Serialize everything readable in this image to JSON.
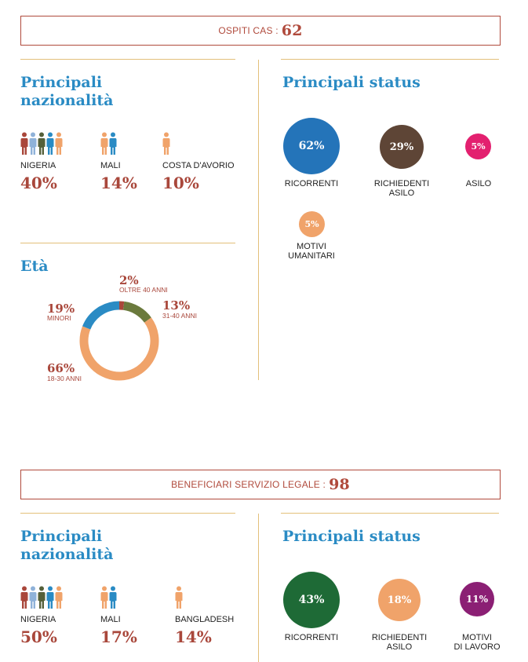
{
  "section1": {
    "banner_label": "OSPITI CAS :",
    "banner_value": "62",
    "nationalities_title": "Principali\nnazionalità",
    "nationalities": [
      {
        "country": "NIGERIA",
        "pct": "40%"
      },
      {
        "country": "MALI",
        "pct": "14%"
      },
      {
        "country": "COSTA D'AVORIO",
        "pct": "10%"
      }
    ],
    "status_title": "Principali status",
    "status": [
      {
        "value": "62%",
        "label": "RICORRENTI",
        "color": "#2474b9"
      },
      {
        "value": "29%",
        "label": "RICHIEDENTI\nASILO",
        "color": "#5e4536"
      },
      {
        "value": "5%",
        "label": "ASILO",
        "color": "#e3206f"
      },
      {
        "value": "5%",
        "label": "MOTIVI\nUMANITARI",
        "color": "#f0a36a"
      }
    ],
    "age_title": "Età",
    "age": [
      {
        "pct": "2%",
        "label": "OLTRE 40 ANNI"
      },
      {
        "pct": "13%",
        "label": "31-40 ANNI"
      },
      {
        "pct": "66%",
        "label": "18-30 ANNI"
      },
      {
        "pct": "19%",
        "label": "MINORI"
      }
    ]
  },
  "section2": {
    "banner_label": "BENEFICIARI SERVIZIO LEGALE :",
    "banner_value": "98",
    "nationalities_title": "Principali\nnazionalità",
    "nationalities": [
      {
        "country": "NIGERIA",
        "pct": "50%"
      },
      {
        "country": "MALI",
        "pct": "17%"
      },
      {
        "country": "BANGLADESH",
        "pct": "14%"
      }
    ],
    "status_title": "Principali status",
    "status": [
      {
        "value": "43%",
        "label": "RICORRENTI",
        "color": "#1e6a36"
      },
      {
        "value": "18%",
        "label": "RICHIEDENTI\nASILO",
        "color": "#f0a36a"
      },
      {
        "value": "11%",
        "label": "MOTIVI\nDI LAVORO",
        "color": "#8b1f74"
      }
    ]
  },
  "icons": {
    "person_colors": [
      "#a9473b",
      "#8fb2d9",
      "#55603a",
      "#2a8bc4",
      "#f0a36a"
    ]
  },
  "chart_data": [
    {
      "type": "pie",
      "title": "Età",
      "categories": [
        "OLTRE 40 ANNI",
        "31-40 ANNI",
        "18-30 ANNI",
        "MINORI"
      ],
      "values": [
        2,
        13,
        66,
        19
      ],
      "colors": [
        "#a9473b",
        "#6b7a3d",
        "#f0a36a",
        "#2a8bc4"
      ]
    }
  ]
}
